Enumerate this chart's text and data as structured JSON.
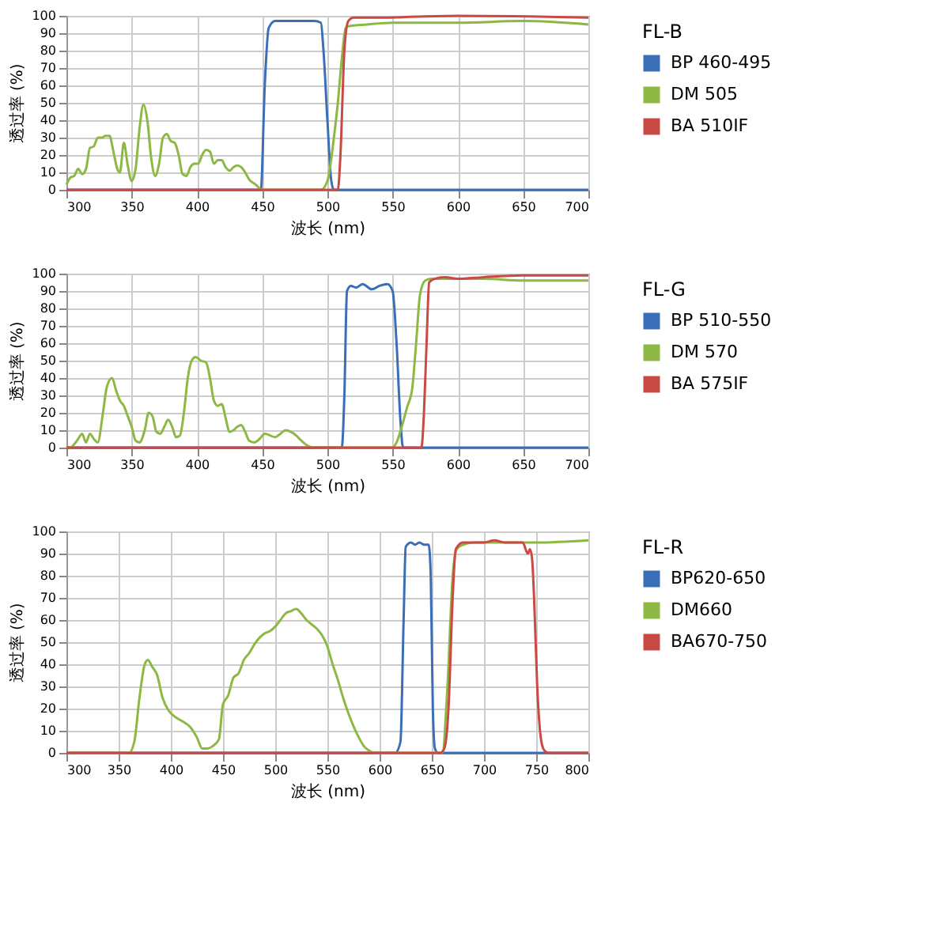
{
  "chart_data": [
    {
      "type": "line",
      "xlabel": "波长 (nm)",
      "ylabel": "透过率 (%)",
      "legend_title": "FL-B",
      "legend": "right",
      "grid": true,
      "xlim": [
        300,
        700
      ],
      "xticks": [
        300,
        350,
        400,
        450,
        500,
        550,
        600,
        650,
        700
      ],
      "ylim": [
        0,
        100
      ],
      "yticks": [
        0,
        10,
        20,
        30,
        40,
        50,
        60,
        70,
        80,
        90,
        100
      ],
      "series": [
        {
          "name": "BP 460-495",
          "color": "#3a6fb7",
          "x": [
            300,
            449,
            452,
            455,
            460,
            470,
            480,
            490,
            495,
            497,
            500,
            503,
            505,
            700
          ],
          "values": [
            0,
            0,
            60,
            93,
            97,
            97,
            97,
            97,
            96,
            80,
            40,
            5,
            0,
            0
          ]
        },
        {
          "name": "DM 505",
          "color": "#8db843",
          "x": [
            300,
            303,
            306,
            309,
            312,
            315,
            318,
            321,
            324,
            327,
            330,
            333,
            336,
            339,
            341,
            344,
            347,
            350,
            353,
            356,
            359,
            362,
            365,
            368,
            371,
            374,
            377,
            380,
            383,
            386,
            389,
            392,
            395,
            398,
            401,
            404,
            407,
            410,
            413,
            416,
            419,
            422,
            425,
            428,
            431,
            434,
            437,
            440,
            445,
            450,
            495,
            500,
            505,
            508,
            511,
            514,
            516,
            530,
            550,
            600,
            650,
            700
          ],
          "values": [
            3,
            7,
            8,
            12,
            9,
            12,
            24,
            25,
            30,
            30,
            31,
            31,
            22,
            12,
            10,
            27,
            14,
            5,
            12,
            35,
            49,
            40,
            18,
            8,
            15,
            30,
            32,
            28,
            27,
            20,
            9,
            8,
            13,
            15,
            15,
            20,
            23,
            22,
            15,
            17,
            17,
            13,
            11,
            13,
            14,
            13,
            10,
            6,
            3,
            0,
            0,
            5,
            30,
            50,
            75,
            93,
            94,
            95,
            96,
            96,
            97,
            95
          ]
        },
        {
          "name": "BA 510IF",
          "color": "#c94a45",
          "x": [
            300,
            508,
            510,
            513,
            516,
            520,
            540,
            600,
            700
          ],
          "values": [
            0,
            0,
            20,
            80,
            97,
            99,
            99,
            100,
            99
          ]
        }
      ]
    },
    {
      "type": "line",
      "xlabel": "波长 (nm)",
      "ylabel": "透过率 (%)",
      "legend_title": "FL-G",
      "legend": "right",
      "grid": true,
      "xlim": [
        300,
        700
      ],
      "xticks": [
        300,
        350,
        400,
        450,
        500,
        550,
        600,
        650,
        700
      ],
      "ylim": [
        0,
        100
      ],
      "yticks": [
        0,
        10,
        20,
        30,
        40,
        50,
        60,
        70,
        80,
        90,
        100
      ],
      "series": [
        {
          "name": "BP 510-550",
          "color": "#3a6fb7",
          "x": [
            300,
            511,
            513,
            515,
            518,
            522,
            527,
            534,
            540,
            546,
            550,
            553,
            556,
            558,
            700
          ],
          "values": [
            0,
            0,
            30,
            90,
            93,
            92,
            94,
            91,
            93,
            94,
            90,
            60,
            15,
            0,
            0
          ]
        },
        {
          "name": "DM 570",
          "color": "#8db843",
          "x": [
            300,
            303,
            306,
            309,
            312,
            315,
            318,
            321,
            324,
            328,
            331,
            335,
            338,
            341,
            344,
            347,
            350,
            353,
            356,
            360,
            363,
            366,
            369,
            372,
            375,
            378,
            381,
            384,
            387,
            390,
            393,
            396,
            399,
            403,
            407,
            410,
            413,
            416,
            419,
            422,
            425,
            428,
            431,
            434,
            437,
            440,
            444,
            448,
            452,
            456,
            460,
            464,
            468,
            472,
            476,
            480,
            485,
            490,
            550,
            553,
            557,
            561,
            565,
            568,
            571,
            575,
            580,
            590,
            600,
            620,
            650,
            700
          ],
          "values": [
            1,
            0,
            2,
            5,
            8,
            3,
            8,
            5,
            3,
            20,
            35,
            40,
            33,
            27,
            24,
            18,
            12,
            4,
            3,
            10,
            20,
            18,
            9,
            8,
            12,
            16,
            12,
            6,
            7,
            20,
            40,
            50,
            52,
            50,
            49,
            40,
            27,
            24,
            25,
            17,
            9,
            10,
            12,
            13,
            9,
            4,
            3,
            5,
            8,
            7,
            6,
            8,
            10,
            9,
            7,
            4,
            1,
            0,
            0,
            3,
            12,
            23,
            34,
            60,
            88,
            96,
            97,
            97,
            97,
            97,
            96,
            96
          ]
        },
        {
          "name": "BA 575IF",
          "color": "#c94a45",
          "x": [
            300,
            572,
            574,
            576,
            578,
            582,
            590,
            600,
            620,
            650,
            700
          ],
          "values": [
            0,
            0,
            20,
            60,
            95,
            97,
            98,
            97,
            98,
            99,
            99
          ]
        }
      ]
    },
    {
      "type": "line",
      "xlabel": "波长 (nm)",
      "ylabel": "透过率 (%)",
      "legend_title": "FL-R",
      "legend": "right",
      "grid": true,
      "xlim": [
        300,
        800
      ],
      "xticks": [
        300,
        350,
        400,
        450,
        500,
        550,
        600,
        650,
        700,
        750,
        800
      ],
      "ylim": [
        0,
        100
      ],
      "yticks": [
        0,
        10,
        20,
        30,
        40,
        50,
        60,
        70,
        80,
        90,
        100
      ],
      "series": [
        {
          "name": "BP620-650",
          "color": "#3a6fb7",
          "x": [
            300,
            615,
            620,
            623,
            625,
            630,
            634,
            638,
            643,
            647,
            649,
            651,
            653,
            656,
            800
          ],
          "values": [
            0,
            0,
            5,
            60,
            93,
            95,
            94,
            95,
            94,
            94,
            80,
            20,
            2,
            0,
            0
          ]
        },
        {
          "name": "DM660",
          "color": "#8db843",
          "x": [
            300,
            360,
            365,
            370,
            375,
            378,
            382,
            387,
            392,
            398,
            405,
            412,
            418,
            425,
            430,
            435,
            440,
            446,
            450,
            455,
            460,
            465,
            470,
            475,
            480,
            485,
            490,
            495,
            500,
            505,
            510,
            515,
            520,
            525,
            530,
            535,
            540,
            545,
            550,
            555,
            560,
            565,
            570,
            575,
            580,
            585,
            590,
            595,
            660,
            665,
            670,
            674,
            680,
            690,
            700,
            710,
            730,
            750,
            800
          ],
          "values": [
            0,
            0,
            5,
            25,
            40,
            42,
            39,
            35,
            25,
            19,
            16,
            14,
            12,
            7,
            2,
            2,
            3,
            6,
            22,
            26,
            34,
            36,
            42,
            45,
            49,
            52,
            54,
            55,
            57,
            60,
            63,
            64,
            65,
            63,
            60,
            58,
            56,
            53,
            48,
            40,
            33,
            25,
            18,
            12,
            7,
            3,
            1,
            0,
            0,
            30,
            80,
            92,
            94,
            95,
            95,
            95,
            95,
            95,
            96
          ]
        },
        {
          "name": "BA670-750",
          "color": "#c94a45",
          "x": [
            300,
            658,
            662,
            666,
            670,
            673,
            680,
            690,
            700,
            710,
            720,
            730,
            737,
            742,
            744,
            746,
            748,
            751,
            755,
            758,
            762,
            800
          ],
          "values": [
            0,
            0,
            2,
            20,
            70,
            92,
            95,
            95,
            95,
            96,
            95,
            95,
            95,
            90,
            92,
            88,
            70,
            30,
            5,
            1,
            0,
            0
          ]
        }
      ]
    }
  ]
}
